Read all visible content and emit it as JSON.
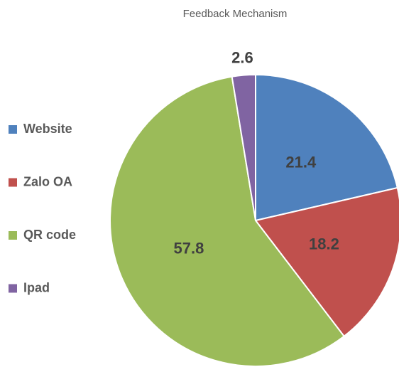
{
  "chart_data": {
    "type": "pie",
    "title": "Feedback Mechanism",
    "categories": [
      "Website",
      "Zalo OA",
      "QR code",
      "Ipad"
    ],
    "values": [
      21.4,
      18.2,
      57.8,
      2.6
    ],
    "colors": [
      "#4f81bd",
      "#c0504d",
      "#9bbb59",
      "#8064a2"
    ],
    "legend": "left"
  }
}
